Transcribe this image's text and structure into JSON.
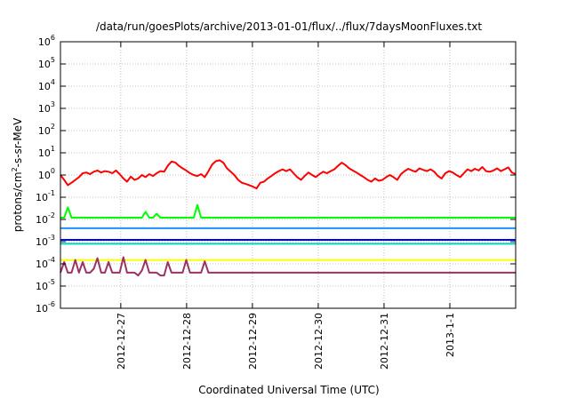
{
  "chart_data": {
    "type": "line",
    "title": "/data/run/goesPlots/archive/2013-01-01/flux/../flux/7daysMoonFluxes.txt",
    "xlabel": "Coordinated Universal Time (UTC)",
    "ylabel": {
      "main": "protons/cm",
      "exp": "2",
      "tail": "-s-sr-MeV"
    },
    "yscale": "log",
    "ylim_exp": [
      -6,
      6
    ],
    "ytick_labels": [
      {
        "base": "10",
        "exp": "-6"
      },
      {
        "base": "10",
        "exp": "-5"
      },
      {
        "base": "10",
        "exp": "-4"
      },
      {
        "base": "10",
        "exp": "-3"
      },
      {
        "base": "10",
        "exp": "-2"
      },
      {
        "base": "10",
        "exp": "-1"
      },
      {
        "base": "10",
        "exp": "0"
      },
      {
        "base": "10",
        "exp": "1"
      },
      {
        "base": "10",
        "exp": "2"
      },
      {
        "base": "10",
        "exp": "3"
      },
      {
        "base": "10",
        "exp": "4"
      },
      {
        "base": "10",
        "exp": "5"
      },
      {
        "base": "10",
        "exp": "6"
      }
    ],
    "xlim_days": [
      "2012-12-26 02:00",
      "2013-01-02 00:00"
    ],
    "x_ticks": [
      {
        "label": "2012-12-27",
        "day": 1
      },
      {
        "label": "2012-12-28",
        "day": 2
      },
      {
        "label": "2012-12-29",
        "day": 3
      },
      {
        "label": "2012-12-30",
        "day": 4
      },
      {
        "label": "2012-12-31",
        "day": 5
      },
      {
        "label": "2013-1-1",
        "day": 6
      }
    ],
    "grid": true,
    "series": [
      {
        "color": "#ff0000",
        "values": [
          1.0,
          0.6,
          0.35,
          0.45,
          0.6,
          0.8,
          1.2,
          1.3,
          1.1,
          1.4,
          1.6,
          1.3,
          1.5,
          1.4,
          1.2,
          1.6,
          1.1,
          0.7,
          0.5,
          0.85,
          0.6,
          0.7,
          1.0,
          0.8,
          1.1,
          0.9,
          1.2,
          1.5,
          1.4,
          2.6,
          4.0,
          3.7,
          2.6,
          2.0,
          1.6,
          1.2,
          1.0,
          0.9,
          1.1,
          0.8,
          1.5,
          3.0,
          4.2,
          4.6,
          3.6,
          2.0,
          1.4,
          1.0,
          0.6,
          0.45,
          0.4,
          0.35,
          0.3,
          0.25,
          0.45,
          0.5,
          0.7,
          0.9,
          1.2,
          1.5,
          1.8,
          1.5,
          1.8,
          1.2,
          0.8,
          0.6,
          0.9,
          1.3,
          1.0,
          0.8,
          1.1,
          1.4,
          1.2,
          1.5,
          1.8,
          2.6,
          3.6,
          2.8,
          2.0,
          1.6,
          1.3,
          1.0,
          0.8,
          0.6,
          0.5,
          0.7,
          0.55,
          0.6,
          0.8,
          1.0,
          0.8,
          0.6,
          1.1,
          1.5,
          1.9,
          1.6,
          1.4,
          2.0,
          1.7,
          1.5,
          1.8,
          1.4,
          0.9,
          0.7,
          1.2,
          1.5,
          1.3,
          1.0,
          0.8,
          1.2,
          1.8,
          1.5,
          1.9,
          1.6,
          2.3,
          1.5,
          1.4,
          1.6,
          2.0,
          1.5,
          1.8,
          2.2,
          1.3,
          1.1
        ]
      },
      {
        "color": "#00ff00",
        "values": [
          0.012,
          0.012,
          0.035,
          0.012,
          0.012,
          0.012,
          0.012,
          0.012,
          0.012,
          0.012,
          0.012,
          0.012,
          0.012,
          0.012,
          0.012,
          0.012,
          0.012,
          0.012,
          0.012,
          0.012,
          0.012,
          0.012,
          0.012,
          0.022,
          0.012,
          0.012,
          0.018,
          0.012,
          0.012,
          0.012,
          0.012,
          0.012,
          0.012,
          0.012,
          0.012,
          0.012,
          0.012,
          0.045,
          0.012,
          0.012,
          0.012,
          0.012,
          0.012,
          0.012,
          0.012,
          0.012,
          0.012,
          0.012,
          0.012,
          0.012,
          0.012,
          0.012,
          0.012,
          0.012,
          0.012,
          0.012,
          0.012,
          0.012,
          0.012,
          0.012,
          0.012,
          0.012,
          0.012,
          0.012,
          0.012,
          0.012,
          0.012,
          0.012,
          0.012,
          0.012,
          0.012,
          0.012,
          0.012,
          0.012,
          0.012,
          0.012,
          0.012,
          0.012,
          0.012,
          0.012,
          0.012,
          0.012,
          0.012,
          0.012,
          0.012,
          0.012,
          0.012,
          0.012,
          0.012,
          0.012,
          0.012,
          0.012,
          0.012,
          0.012,
          0.012,
          0.012,
          0.012,
          0.012,
          0.012,
          0.012,
          0.012,
          0.012,
          0.012,
          0.012,
          0.012,
          0.012,
          0.012,
          0.012,
          0.012,
          0.012,
          0.012,
          0.012,
          0.012,
          0.012,
          0.012,
          0.012,
          0.012,
          0.012,
          0.012,
          0.012,
          0.012,
          0.012,
          0.012,
          0.012
        ]
      },
      {
        "color": "#1e90ff",
        "values": [
          0.004,
          0.004,
          0.004,
          0.004,
          0.004,
          0.004,
          0.004,
          0.004,
          0.004,
          0.004,
          0.004,
          0.004,
          0.004,
          0.004,
          0.004,
          0.004,
          0.004,
          0.004,
          0.004,
          0.004,
          0.004,
          0.004,
          0.004,
          0.004,
          0.004,
          0.004,
          0.004,
          0.004,
          0.004,
          0.004,
          0.004,
          0.004,
          0.004,
          0.004,
          0.004,
          0.004,
          0.004,
          0.004,
          0.004,
          0.004,
          0.004,
          0.004,
          0.004,
          0.004,
          0.004,
          0.004,
          0.004,
          0.004,
          0.004,
          0.004,
          0.004,
          0.004,
          0.004,
          0.004,
          0.004,
          0.004,
          0.004,
          0.004,
          0.004,
          0.004,
          0.004,
          0.004,
          0.004,
          0.004,
          0.004,
          0.004,
          0.004,
          0.004,
          0.004,
          0.004,
          0.004,
          0.004,
          0.004,
          0.004,
          0.004,
          0.004,
          0.004,
          0.004,
          0.004,
          0.004,
          0.004,
          0.004,
          0.004,
          0.004,
          0.004,
          0.004,
          0.004,
          0.004,
          0.004,
          0.004,
          0.004,
          0.004,
          0.004,
          0.004,
          0.004,
          0.004,
          0.004,
          0.004,
          0.004,
          0.004,
          0.004,
          0.004,
          0.004,
          0.004,
          0.004,
          0.004,
          0.004,
          0.004,
          0.004,
          0.004,
          0.004,
          0.004,
          0.004,
          0.004,
          0.004,
          0.004,
          0.004,
          0.004,
          0.004,
          0.004,
          0.004,
          0.004,
          0.004,
          0.004
        ]
      },
      {
        "color": "#0000ff",
        "values": [
          0.0012,
          0.0012,
          0.0012,
          0.0012,
          0.0012,
          0.0012,
          0.0012,
          0.0012,
          0.0012,
          0.0012,
          0.0012,
          0.0012,
          0.0012,
          0.0012,
          0.0012,
          0.0012,
          0.0012,
          0.0012,
          0.0012,
          0.0012,
          0.0012,
          0.0012,
          0.0012,
          0.0012,
          0.0012,
          0.0012,
          0.0012,
          0.0012,
          0.0012,
          0.0012,
          0.0012,
          0.0012,
          0.0012,
          0.0012,
          0.0012,
          0.0012,
          0.0012,
          0.0012,
          0.0012,
          0.0012,
          0.0012,
          0.0012,
          0.0012,
          0.0012,
          0.0012,
          0.0012,
          0.0012,
          0.0012,
          0.0012,
          0.0012,
          0.0012,
          0.0012,
          0.0012,
          0.0012,
          0.0012,
          0.0012,
          0.0012,
          0.0012,
          0.0012,
          0.0012,
          0.0012,
          0.0012,
          0.0012,
          0.0012,
          0.0012,
          0.0012,
          0.0012,
          0.0012,
          0.0012,
          0.0012,
          0.0012,
          0.0012,
          0.0012,
          0.0012,
          0.0012,
          0.0012,
          0.0012,
          0.0012,
          0.0012,
          0.0012,
          0.0012,
          0.0012,
          0.0012,
          0.0012,
          0.0012,
          0.0012,
          0.0012,
          0.0012,
          0.0012,
          0.0012,
          0.0012,
          0.0012,
          0.0012,
          0.0012,
          0.0012,
          0.0012,
          0.0012,
          0.0012,
          0.0012,
          0.0012,
          0.0012,
          0.0012,
          0.0012,
          0.0012,
          0.0012,
          0.0012,
          0.0012,
          0.0012,
          0.0012,
          0.0012,
          0.0012,
          0.0012,
          0.0012,
          0.0012,
          0.0012,
          0.0012,
          0.0012,
          0.0012,
          0.0012,
          0.0012,
          0.0012,
          0.0012,
          0.0012,
          0.0012
        ]
      },
      {
        "color": "#00d0c0",
        "values": [
          0.0008,
          0.0008,
          0.0008,
          0.0008,
          0.0008,
          0.0008,
          0.0008,
          0.0008,
          0.0008,
          0.0008,
          0.0008,
          0.0008,
          0.0008,
          0.0008,
          0.0008,
          0.0008,
          0.0008,
          0.0008,
          0.0008,
          0.0008,
          0.0008,
          0.0008,
          0.0008,
          0.0008,
          0.0008,
          0.0008,
          0.0008,
          0.0008,
          0.0008,
          0.0008,
          0.0008,
          0.0008,
          0.0008,
          0.0008,
          0.0008,
          0.0008,
          0.0008,
          0.0008,
          0.0008,
          0.0008,
          0.0008,
          0.0008,
          0.0008,
          0.0008,
          0.0008,
          0.0008,
          0.0008,
          0.0008,
          0.0008,
          0.0008,
          0.0008,
          0.0008,
          0.0008,
          0.0008,
          0.0008,
          0.0008,
          0.0008,
          0.0008,
          0.0008,
          0.0008,
          0.0008,
          0.0008,
          0.0008,
          0.0008,
          0.0008,
          0.0008,
          0.0008,
          0.0008,
          0.0008,
          0.0008,
          0.0008,
          0.0008,
          0.0008,
          0.0008,
          0.0008,
          0.0008,
          0.0008,
          0.0008,
          0.0008,
          0.0008,
          0.0008,
          0.0008,
          0.0008,
          0.0008,
          0.0008,
          0.0008,
          0.0008,
          0.0008,
          0.0008,
          0.0008,
          0.0008,
          0.0008,
          0.0008,
          0.0008,
          0.0008,
          0.0008,
          0.0008,
          0.0008,
          0.0008,
          0.0008,
          0.0008,
          0.0008,
          0.0008,
          0.0008,
          0.0008,
          0.0008,
          0.0008,
          0.0008,
          0.0008,
          0.0008,
          0.0008,
          0.0008,
          0.0008,
          0.0008,
          0.0008,
          0.0008,
          0.0008,
          0.0008,
          0.0008,
          0.0008,
          0.0008,
          0.0008,
          0.0008,
          0.0008
        ]
      },
      {
        "color": "#ffff00",
        "values": [
          0.00015,
          0.00015,
          0.00015,
          0.00015,
          0.00015,
          0.00015,
          0.00015,
          0.00015,
          0.00015,
          0.00015,
          0.00015,
          0.00015,
          0.00015,
          0.00015,
          0.00015,
          0.00015,
          0.00015,
          0.00015,
          0.00015,
          0.00015,
          0.00015,
          0.00015,
          0.00015,
          0.00015,
          0.00015,
          0.00015,
          0.00015,
          0.00015,
          0.00015,
          0.00015,
          0.00015,
          0.00015,
          0.00015,
          0.00015,
          0.00015,
          0.00015,
          0.00015,
          0.00015,
          0.00015,
          0.00015,
          0.00015,
          0.00015,
          0.00015,
          0.00015,
          0.00015,
          0.00015,
          0.00015,
          0.00015,
          0.00015,
          0.00015,
          0.00015,
          0.00015,
          0.00015,
          0.00015,
          0.00015,
          0.00015,
          0.00015,
          0.00015,
          0.00015,
          0.00015,
          0.00015,
          0.00015,
          0.00015,
          0.00015,
          0.00015,
          0.00015,
          0.00015,
          0.00015,
          0.00015,
          0.00015,
          0.00015,
          0.00015,
          0.00015,
          0.00015,
          0.00015,
          0.00015,
          0.00015,
          0.00015,
          0.00015,
          0.00015,
          0.00015,
          0.00015,
          0.00015,
          0.00015,
          0.00015,
          0.00015,
          0.00015,
          0.00015,
          0.00015,
          0.00015,
          0.00015,
          0.00015,
          0.00015,
          0.00015,
          0.00015,
          0.00015,
          0.00015,
          0.00015,
          0.00015,
          0.00015,
          0.00015,
          0.00015,
          0.00015,
          0.00015,
          0.00015,
          0.00015,
          0.00015,
          0.00015,
          0.00015,
          0.00015,
          0.00015,
          0.00015,
          0.00015,
          0.00015,
          0.00015,
          0.00015,
          0.00015,
          0.00015,
          0.00015,
          0.00015,
          0.00015,
          0.00015,
          0.00015,
          0.00015
        ]
      },
      {
        "color": "#993366",
        "values": [
          4e-05,
          0.00012,
          4e-05,
          4e-05,
          0.00015,
          4e-05,
          0.00012,
          4e-05,
          4e-05,
          6e-05,
          0.00018,
          4e-05,
          4e-05,
          0.00012,
          4e-05,
          4e-05,
          4e-05,
          0.0002,
          4e-05,
          4e-05,
          4e-05,
          3e-05,
          5e-05,
          0.00015,
          4e-05,
          4e-05,
          4e-05,
          3e-05,
          3e-05,
          0.00012,
          4e-05,
          4e-05,
          4e-05,
          4e-05,
          0.00015,
          4e-05,
          4e-05,
          4e-05,
          4e-05,
          0.00013,
          4e-05,
          4e-05,
          4e-05,
          4e-05,
          4e-05,
          4e-05,
          4e-05,
          4e-05,
          4e-05,
          4e-05,
          4e-05,
          4e-05,
          4e-05,
          4e-05,
          4e-05,
          4e-05,
          4e-05,
          4e-05,
          4e-05,
          4e-05,
          4e-05,
          4e-05,
          4e-05,
          4e-05,
          4e-05,
          4e-05,
          4e-05,
          4e-05,
          4e-05,
          4e-05,
          4e-05,
          4e-05,
          4e-05,
          4e-05,
          4e-05,
          4e-05,
          4e-05,
          4e-05,
          4e-05,
          4e-05,
          4e-05,
          4e-05,
          4e-05,
          4e-05,
          4e-05,
          4e-05,
          4e-05,
          4e-05,
          4e-05,
          4e-05,
          4e-05,
          4e-05,
          4e-05,
          4e-05,
          4e-05,
          4e-05,
          4e-05,
          4e-05,
          4e-05,
          4e-05,
          4e-05,
          4e-05,
          4e-05,
          4e-05,
          4e-05,
          4e-05,
          4e-05,
          4e-05,
          4e-05,
          4e-05,
          4e-05,
          4e-05,
          4e-05,
          4e-05,
          4e-05,
          4e-05,
          4e-05,
          4e-05,
          4e-05,
          4e-05,
          4e-05,
          4e-05,
          4e-05,
          4e-05
        ]
      }
    ]
  }
}
